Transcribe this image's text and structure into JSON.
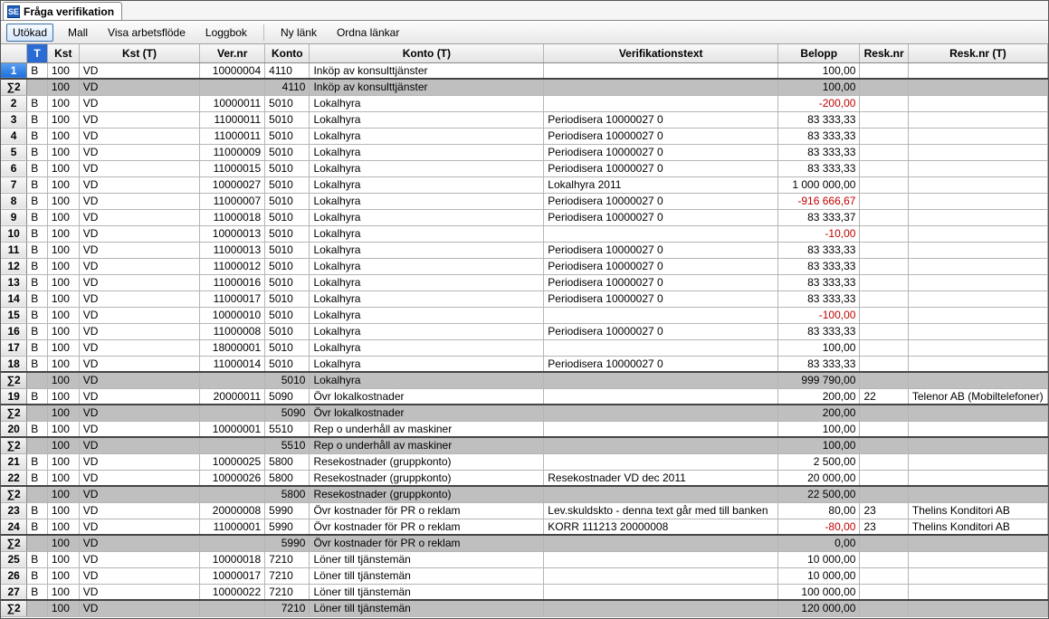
{
  "window": {
    "title": "Fråga verifikation",
    "icon_text": "SE"
  },
  "toolbar": {
    "utokad": "Utökad",
    "mall": "Mall",
    "visa_arbetsflode": "Visa arbetsflöde",
    "loggbok": "Loggbok",
    "ny_lank": "Ny länk",
    "ordna_lankar": "Ordna länkar"
  },
  "columns": {
    "row": "",
    "t": "T",
    "kst": "Kst",
    "kstt": "Kst (T)",
    "ver": "Ver.nr",
    "konto": "Konto",
    "kontot": "Konto (T)",
    "vtext": "Verifikationstext",
    "belopp": "Belopp",
    "resknr": "Resk.nr",
    "resknrt": "Resk.nr (T)"
  },
  "rows": [
    {
      "n": "1",
      "t": "B",
      "kst": "100",
      "kstt": "VD",
      "ver": "10000004",
      "konto": "4110",
      "kontot": "Inköp av konsulttjänster",
      "vtext": "",
      "belopp": "100,00",
      "neg": false,
      "resknr": "",
      "resknrt": "",
      "selected": true
    },
    {
      "summary": true,
      "n": "∑2",
      "kst": "100",
      "kstt": "VD",
      "konto": "4110",
      "kontot": "Inköp av konsulttjänster",
      "belopp": "100,00",
      "heavy": true
    },
    {
      "n": "2",
      "t": "B",
      "kst": "100",
      "kstt": "VD",
      "ver": "10000011",
      "konto": "5010",
      "kontot": "Lokalhyra",
      "vtext": "",
      "belopp": "-200,00",
      "neg": true
    },
    {
      "n": "3",
      "t": "B",
      "kst": "100",
      "kstt": "VD",
      "ver": "11000011",
      "konto": "5010",
      "kontot": "Lokalhyra",
      "vtext": "Periodisera 10000027 0",
      "belopp": "83 333,33"
    },
    {
      "n": "4",
      "t": "B",
      "kst": "100",
      "kstt": "VD",
      "ver": "11000011",
      "konto": "5010",
      "kontot": "Lokalhyra",
      "vtext": "Periodisera 10000027 0",
      "belopp": "83 333,33"
    },
    {
      "n": "5",
      "t": "B",
      "kst": "100",
      "kstt": "VD",
      "ver": "11000009",
      "konto": "5010",
      "kontot": "Lokalhyra",
      "vtext": "Periodisera 10000027 0",
      "belopp": "83 333,33"
    },
    {
      "n": "6",
      "t": "B",
      "kst": "100",
      "kstt": "VD",
      "ver": "11000015",
      "konto": "5010",
      "kontot": "Lokalhyra",
      "vtext": "Periodisera 10000027 0",
      "belopp": "83 333,33"
    },
    {
      "n": "7",
      "t": "B",
      "kst": "100",
      "kstt": "VD",
      "ver": "10000027",
      "konto": "5010",
      "kontot": "Lokalhyra",
      "vtext": "Lokalhyra 2011",
      "belopp": "1 000 000,00"
    },
    {
      "n": "8",
      "t": "B",
      "kst": "100",
      "kstt": "VD",
      "ver": "11000007",
      "konto": "5010",
      "kontot": "Lokalhyra",
      "vtext": "Periodisera 10000027 0",
      "belopp": "-916 666,67",
      "neg": true
    },
    {
      "n": "9",
      "t": "B",
      "kst": "100",
      "kstt": "VD",
      "ver": "11000018",
      "konto": "5010",
      "kontot": "Lokalhyra",
      "vtext": "Periodisera 10000027 0",
      "belopp": "83 333,37"
    },
    {
      "n": "10",
      "t": "B",
      "kst": "100",
      "kstt": "VD",
      "ver": "10000013",
      "konto": "5010",
      "kontot": "Lokalhyra",
      "vtext": "",
      "belopp": "-10,00",
      "neg": true
    },
    {
      "n": "11",
      "t": "B",
      "kst": "100",
      "kstt": "VD",
      "ver": "11000013",
      "konto": "5010",
      "kontot": "Lokalhyra",
      "vtext": "Periodisera 10000027 0",
      "belopp": "83 333,33"
    },
    {
      "n": "12",
      "t": "B",
      "kst": "100",
      "kstt": "VD",
      "ver": "11000012",
      "konto": "5010",
      "kontot": "Lokalhyra",
      "vtext": "Periodisera 10000027 0",
      "belopp": "83 333,33"
    },
    {
      "n": "13",
      "t": "B",
      "kst": "100",
      "kstt": "VD",
      "ver": "11000016",
      "konto": "5010",
      "kontot": "Lokalhyra",
      "vtext": "Periodisera 10000027 0",
      "belopp": "83 333,33"
    },
    {
      "n": "14",
      "t": "B",
      "kst": "100",
      "kstt": "VD",
      "ver": "11000017",
      "konto": "5010",
      "kontot": "Lokalhyra",
      "vtext": "Periodisera 10000027 0",
      "belopp": "83 333,33"
    },
    {
      "n": "15",
      "t": "B",
      "kst": "100",
      "kstt": "VD",
      "ver": "10000010",
      "konto": "5010",
      "kontot": "Lokalhyra",
      "vtext": "",
      "belopp": "-100,00",
      "neg": true
    },
    {
      "n": "16",
      "t": "B",
      "kst": "100",
      "kstt": "VD",
      "ver": "11000008",
      "konto": "5010",
      "kontot": "Lokalhyra",
      "vtext": "Periodisera 10000027 0",
      "belopp": "83 333,33"
    },
    {
      "n": "17",
      "t": "B",
      "kst": "100",
      "kstt": "VD",
      "ver": "18000001",
      "konto": "5010",
      "kontot": "Lokalhyra",
      "vtext": "",
      "belopp": "100,00"
    },
    {
      "n": "18",
      "t": "B",
      "kst": "100",
      "kstt": "VD",
      "ver": "11000014",
      "konto": "5010",
      "kontot": "Lokalhyra",
      "vtext": "Periodisera 10000027 0",
      "belopp": "83 333,33"
    },
    {
      "summary": true,
      "n": "∑2",
      "kst": "100",
      "kstt": "VD",
      "konto": "5010",
      "kontot": "Lokalhyra",
      "belopp": "999 790,00",
      "heavy": true
    },
    {
      "n": "19",
      "t": "B",
      "kst": "100",
      "kstt": "VD",
      "ver": "20000011",
      "konto": "5090",
      "kontot": "Övr lokalkostnader",
      "vtext": "",
      "belopp": "200,00",
      "resknr": "22",
      "resknrt": "Telenor AB (Mobiltelefoner)"
    },
    {
      "summary": true,
      "n": "∑2",
      "kst": "100",
      "kstt": "VD",
      "konto": "5090",
      "kontot": "Övr lokalkostnader",
      "belopp": "200,00",
      "heavy": true
    },
    {
      "n": "20",
      "t": "B",
      "kst": "100",
      "kstt": "VD",
      "ver": "10000001",
      "konto": "5510",
      "kontot": "Rep o underhåll av maskiner",
      "vtext": "",
      "belopp": "100,00"
    },
    {
      "summary": true,
      "n": "∑2",
      "kst": "100",
      "kstt": "VD",
      "konto": "5510",
      "kontot": "Rep o underhåll av maskiner",
      "belopp": "100,00",
      "heavy": true
    },
    {
      "n": "21",
      "t": "B",
      "kst": "100",
      "kstt": "VD",
      "ver": "10000025",
      "konto": "5800",
      "kontot": "Resekostnader (gruppkonto)",
      "vtext": "",
      "belopp": "2 500,00"
    },
    {
      "n": "22",
      "t": "B",
      "kst": "100",
      "kstt": "VD",
      "ver": "10000026",
      "konto": "5800",
      "kontot": "Resekostnader (gruppkonto)",
      "vtext": "Resekostnader VD dec 2011",
      "belopp": "20 000,00"
    },
    {
      "summary": true,
      "n": "∑2",
      "kst": "100",
      "kstt": "VD",
      "konto": "5800",
      "kontot": "Resekostnader (gruppkonto)",
      "belopp": "22 500,00",
      "heavy": true
    },
    {
      "n": "23",
      "t": "B",
      "kst": "100",
      "kstt": "VD",
      "ver": "20000008",
      "konto": "5990",
      "kontot": "Övr kostnader för PR o reklam",
      "vtext": "Lev.skuldskto - denna text går med till banken",
      "belopp": "80,00",
      "resknr": "23",
      "resknrt": "Thelins Konditori AB"
    },
    {
      "n": "24",
      "t": "B",
      "kst": "100",
      "kstt": "VD",
      "ver": "11000001",
      "konto": "5990",
      "kontot": "Övr kostnader för PR o reklam",
      "vtext": "KORR 111213 20000008",
      "belopp": "-80,00",
      "neg": true,
      "resknr": "23",
      "resknrt": "Thelins Konditori AB"
    },
    {
      "summary": true,
      "n": "∑2",
      "kst": "100",
      "kstt": "VD",
      "konto": "5990",
      "kontot": "Övr kostnader för PR o reklam",
      "belopp": "0,00",
      "heavy": true
    },
    {
      "n": "25",
      "t": "B",
      "kst": "100",
      "kstt": "VD",
      "ver": "10000018",
      "konto": "7210",
      "kontot": "Löner till tjänstemän",
      "vtext": "",
      "belopp": "10 000,00"
    },
    {
      "n": "26",
      "t": "B",
      "kst": "100",
      "kstt": "VD",
      "ver": "10000017",
      "konto": "7210",
      "kontot": "Löner till tjänstemän",
      "vtext": "",
      "belopp": "10 000,00"
    },
    {
      "n": "27",
      "t": "B",
      "kst": "100",
      "kstt": "VD",
      "ver": "10000022",
      "konto": "7210",
      "kontot": "Löner till tjänstemän",
      "vtext": "",
      "belopp": "100 000,00"
    },
    {
      "summary": true,
      "n": "∑2",
      "kst": "100",
      "kstt": "VD",
      "konto": "7210",
      "kontot": "Löner till tjänstemän",
      "belopp": "120 000,00",
      "heavy": true
    }
  ]
}
